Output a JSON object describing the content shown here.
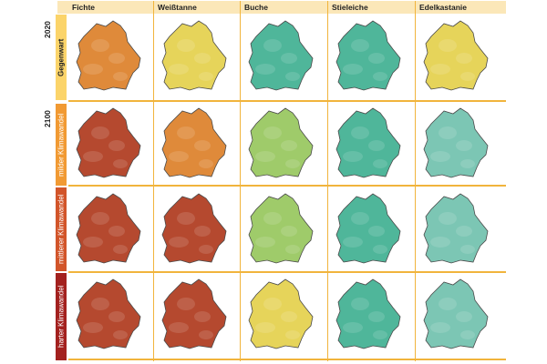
{
  "columns": [
    "Fichte",
    "Weißtanne",
    "Buche",
    "Stieleiche",
    "Edelkastanie"
  ],
  "years": [
    "2020",
    "2100"
  ],
  "rows": [
    {
      "label": "Gegenwart",
      "color": "#fbd46a"
    },
    {
      "label": "milder Klimawandel",
      "color": "#f19a33"
    },
    {
      "label": "mittlerer Klimawandel",
      "color": "#d2552a"
    },
    {
      "label": "harter Klimawandel",
      "color": "#a3211f"
    }
  ],
  "map_palette": {
    "red": "#b5492f",
    "orange": "#df8a3a",
    "yellow": "#e6d45a",
    "lightgreen": "#9fcb6a",
    "teal": "#4fb69a",
    "paleteal": "#7cc6b4"
  },
  "grid_color": "#f1b43c",
  "header_bg": "#fbe7b8",
  "maps": [
    [
      "orange",
      "yellow",
      "teal",
      "teal",
      "yellow"
    ],
    [
      "red",
      "orange",
      "lightgreen",
      "teal",
      "paleteal"
    ],
    [
      "red",
      "red",
      "lightgreen",
      "teal",
      "paleteal"
    ],
    [
      "red",
      "red",
      "yellow",
      "teal",
      "paleteal"
    ]
  ]
}
